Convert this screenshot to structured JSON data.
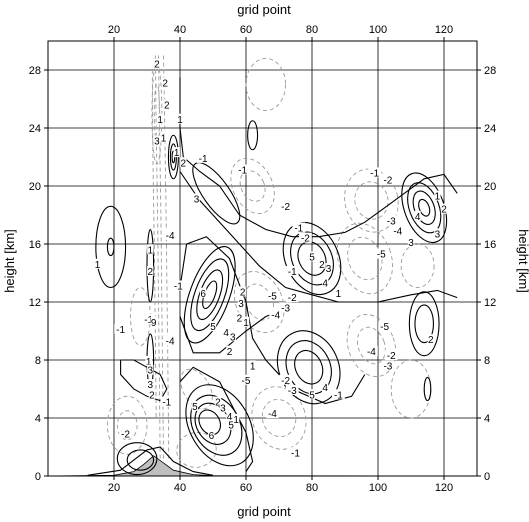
{
  "chart_data": {
    "type": "contour",
    "xlabel_bottom": "grid point",
    "xlabel_top": "grid point",
    "ylabel_left": "height [km]",
    "ylabel_right": "height [km]",
    "xlim": [
      0,
      130
    ],
    "ylim": [
      0,
      30
    ],
    "xticks": [
      20,
      40,
      60,
      80,
      100,
      120
    ],
    "yticks": [
      0,
      4,
      8,
      12,
      16,
      20,
      24,
      28
    ],
    "grid": true,
    "colors": {
      "positive": "#000000",
      "negative": "#9a9a9a",
      "terrain": "#bfbfbf"
    },
    "terrain": [
      [
        0,
        0
      ],
      [
        20,
        0.05
      ],
      [
        26,
        0.3
      ],
      [
        29,
        0.8
      ],
      [
        32,
        1.4
      ],
      [
        35,
        0.9
      ],
      [
        38,
        0.4
      ],
      [
        44,
        0.1
      ],
      [
        50,
        0.02
      ],
      [
        130,
        0
      ]
    ],
    "positive_contours": [
      {
        "cx": 49,
        "cy": 12.5,
        "rx": 6,
        "ry": 3.5,
        "rot": 20
      },
      {
        "cx": 49,
        "cy": 12.5,
        "rx": 4.5,
        "ry": 2.6,
        "rot": 20
      },
      {
        "cx": 49,
        "cy": 12.5,
        "rx": 3,
        "ry": 1.8,
        "rot": 20
      },
      {
        "cx": 49,
        "cy": 12.5,
        "rx": 1.6,
        "ry": 1,
        "rot": 20
      },
      {
        "cx": 52,
        "cy": 3.5,
        "rx": 9,
        "ry": 3,
        "rot": -30
      },
      {
        "cx": 51,
        "cy": 3.5,
        "rx": 7,
        "ry": 2.2,
        "rot": -30
      },
      {
        "cx": 50,
        "cy": 3.6,
        "rx": 5,
        "ry": 1.5,
        "rot": -30
      },
      {
        "cx": 49,
        "cy": 3.7,
        "rx": 3,
        "ry": 0.9,
        "rot": -30
      },
      {
        "cx": 80,
        "cy": 15,
        "rx": 8,
        "ry": 2.6,
        "rot": -25
      },
      {
        "cx": 80,
        "cy": 15,
        "rx": 6,
        "ry": 1.9,
        "rot": -25
      },
      {
        "cx": 80,
        "cy": 15,
        "rx": 4,
        "ry": 1.2,
        "rot": -25
      },
      {
        "cx": 79,
        "cy": 7.5,
        "rx": 9,
        "ry": 2.6,
        "rot": -25
      },
      {
        "cx": 79,
        "cy": 7.5,
        "rx": 6.5,
        "ry": 1.9,
        "rot": -25
      },
      {
        "cx": 79,
        "cy": 7.5,
        "rx": 4,
        "ry": 1.2,
        "rot": -25
      },
      {
        "cx": 114,
        "cy": 18.5,
        "rx": 6,
        "ry": 2.5,
        "rot": -20
      },
      {
        "cx": 114,
        "cy": 18.5,
        "rx": 4.5,
        "ry": 1.8,
        "rot": -20
      },
      {
        "cx": 114,
        "cy": 18.5,
        "rx": 3,
        "ry": 1.2,
        "rot": -20
      },
      {
        "cx": 114,
        "cy": 18.5,
        "rx": 1.5,
        "ry": 0.6,
        "rot": -20
      },
      {
        "cx": 114,
        "cy": 10.5,
        "rx": 4.5,
        "ry": 2.2,
        "rot": 0
      },
      {
        "cx": 114,
        "cy": 10.5,
        "rx": 2.8,
        "ry": 1.3,
        "rot": 0
      },
      {
        "cx": 19,
        "cy": 15.8,
        "rx": 4.5,
        "ry": 2.8,
        "rot": 0
      },
      {
        "cx": 19,
        "cy": 15.8,
        "rx": 1,
        "ry": 0.6,
        "rot": 0
      },
      {
        "cx": 51,
        "cy": 19.5,
        "rx": 4,
        "ry": 2.5,
        "rot": -35
      },
      {
        "cx": 38,
        "cy": 22,
        "rx": 1.5,
        "ry": 1.5,
        "rot": 0
      },
      {
        "cx": 38,
        "cy": 22,
        "rx": 0.9,
        "ry": 0.9,
        "rot": 0
      },
      {
        "cx": 38,
        "cy": 22,
        "rx": 0.4,
        "ry": 0.4,
        "rot": 0
      },
      {
        "cx": 62,
        "cy": 23.5,
        "rx": 1.5,
        "ry": 1,
        "rot": 0
      },
      {
        "cx": 115,
        "cy": 6,
        "rx": 1,
        "ry": 0.8,
        "rot": 0
      },
      {
        "cx": 31,
        "cy": 14.5,
        "rx": 1,
        "ry": 2.5,
        "rot": 0
      },
      {
        "cx": 31,
        "cy": 8,
        "rx": 1,
        "ry": 1.8,
        "rot": 0
      },
      {
        "cx": 27,
        "cy": 1.2,
        "rx": 6,
        "ry": 1.1,
        "rot": 0
      },
      {
        "cx": 28,
        "cy": 1.1,
        "rx": 4,
        "ry": 0.7,
        "rot": 0
      }
    ],
    "positive_polylines": [
      [
        [
          40,
          27.5
        ],
        [
          40,
          24
        ],
        [
          41,
          22
        ],
        [
          46,
          21
        ],
        [
          52,
          20
        ],
        [
          58,
          18
        ],
        [
          66,
          17
        ],
        [
          74,
          16.5
        ],
        [
          82,
          16.5
        ],
        [
          90,
          16.8
        ],
        [
          96,
          17.5
        ],
        [
          102,
          18.5
        ],
        [
          108,
          19.5
        ],
        [
          114,
          20.5
        ],
        [
          120,
          20.8
        ],
        [
          124,
          19.5
        ]
      ],
      [
        [
          40,
          21
        ],
        [
          46,
          19
        ],
        [
          56,
          16.5
        ],
        [
          64,
          14.5
        ],
        [
          72,
          13
        ],
        [
          80,
          12.5
        ],
        [
          88,
          12
        ],
        [
          100,
          12
        ],
        [
          110,
          12.5
        ],
        [
          118,
          12.8
        ],
        [
          124,
          12.3
        ]
      ],
      [
        [
          40,
          13
        ],
        [
          42,
          16
        ],
        [
          48,
          16.5
        ],
        [
          55,
          15
        ],
        [
          60,
          12
        ],
        [
          62,
          9.5
        ],
        [
          66,
          8
        ],
        [
          74,
          6
        ],
        [
          84,
          5
        ],
        [
          92,
          5.5
        ],
        [
          96,
          7
        ]
      ],
      [
        [
          40,
          11
        ],
        [
          44,
          8.5
        ],
        [
          52,
          8.5
        ],
        [
          60,
          10
        ],
        [
          66,
          11
        ],
        [
          72,
          11.5
        ]
      ],
      [
        [
          22,
          8
        ],
        [
          26,
          8
        ],
        [
          30,
          7.5
        ],
        [
          34,
          7
        ],
        [
          36,
          6
        ],
        [
          34,
          5.2
        ],
        [
          30,
          5.5
        ],
        [
          26,
          6
        ],
        [
          22,
          7
        ],
        [
          22,
          8
        ]
      ],
      [
        [
          40,
          6.5
        ],
        [
          44,
          7.5
        ],
        [
          52,
          6.5
        ],
        [
          60,
          3
        ],
        [
          62,
          1
        ],
        [
          60,
          0.3
        ]
      ],
      [
        [
          12,
          0.05
        ],
        [
          22,
          0.4
        ],
        [
          30,
          1.8
        ],
        [
          34,
          2
        ],
        [
          38,
          1
        ],
        [
          44,
          0.3
        ],
        [
          50,
          0.05
        ]
      ]
    ],
    "negative_contours": [
      {
        "cx": 33,
        "cy": 25,
        "rx": 1.5,
        "ry": 3.5,
        "rot": 0
      },
      {
        "cx": 33,
        "cy": 25,
        "rx": 0.8,
        "ry": 2,
        "rot": 0
      },
      {
        "cx": 62,
        "cy": 20,
        "rx": 6,
        "ry": 2,
        "rot": -25
      },
      {
        "cx": 62,
        "cy": 20,
        "rx": 3.5,
        "ry": 1.1,
        "rot": -25
      },
      {
        "cx": 98,
        "cy": 19,
        "rx": 8,
        "ry": 2.2,
        "rot": -15
      },
      {
        "cx": 98,
        "cy": 19,
        "rx": 5,
        "ry": 1.3,
        "rot": -15
      },
      {
        "cx": 64,
        "cy": 12,
        "rx": 7,
        "ry": 2.2,
        "rot": -25
      },
      {
        "cx": 64,
        "cy": 12,
        "rx": 4,
        "ry": 1.3,
        "rot": -25
      },
      {
        "cx": 96,
        "cy": 15,
        "rx": 8,
        "ry": 2.5,
        "rot": -20
      },
      {
        "cx": 96,
        "cy": 15,
        "rx": 5,
        "ry": 1.5,
        "rot": -20
      },
      {
        "cx": 98,
        "cy": 9,
        "rx": 7,
        "ry": 2.2,
        "rot": -20
      },
      {
        "cx": 98,
        "cy": 9,
        "rx": 4,
        "ry": 1.3,
        "rot": -20
      },
      {
        "cx": 70,
        "cy": 4,
        "rx": 8,
        "ry": 2.2,
        "rot": -20
      },
      {
        "cx": 70,
        "cy": 4,
        "rx": 5,
        "ry": 1.3,
        "rot": -20
      },
      {
        "cx": 45,
        "cy": 6,
        "rx": 4,
        "ry": 1.5,
        "rot": -30
      },
      {
        "cx": 45,
        "cy": 1.8,
        "rx": 6,
        "ry": 1.2,
        "rot": -10
      },
      {
        "cx": 24,
        "cy": 3.5,
        "rx": 6,
        "ry": 2,
        "rot": 0
      },
      {
        "cx": 24,
        "cy": 3.5,
        "rx": 3,
        "ry": 1,
        "rot": 0
      },
      {
        "cx": 28,
        "cy": 11,
        "rx": 3,
        "ry": 2,
        "rot": 0
      },
      {
        "cx": 110,
        "cy": 6,
        "rx": 6,
        "ry": 2,
        "rot": 0
      },
      {
        "cx": 112,
        "cy": 14.5,
        "rx": 5,
        "ry": 1.5,
        "rot": 0
      },
      {
        "cx": 66,
        "cy": 27,
        "rx": 6,
        "ry": 1.8,
        "rot": 0
      }
    ],
    "negative_polylines": [
      [
        [
          33.5,
          29
        ],
        [
          33.8,
          24
        ],
        [
          34.2,
          18
        ],
        [
          34.5,
          12
        ],
        [
          34.8,
          6
        ],
        [
          35,
          1
        ]
      ],
      [
        [
          32.5,
          29
        ],
        [
          32.8,
          24
        ],
        [
          33.2,
          18
        ],
        [
          33.5,
          12
        ],
        [
          33.8,
          6
        ],
        [
          34,
          1
        ]
      ],
      [
        [
          35,
          29
        ],
        [
          35.4,
          24
        ],
        [
          35.8,
          18
        ],
        [
          36.1,
          12
        ],
        [
          36.4,
          6
        ],
        [
          36.6,
          1
        ]
      ],
      [
        [
          31.6,
          28
        ],
        [
          31.8,
          22
        ],
        [
          32.2,
          16
        ],
        [
          32.5,
          10
        ],
        [
          32.8,
          4
        ]
      ]
    ],
    "labels": [
      {
        "x": 33,
        "y": 28.3,
        "text": "2"
      },
      {
        "x": 35.5,
        "y": 27,
        "text": "2"
      },
      {
        "x": 36,
        "y": 25.5,
        "text": "2"
      },
      {
        "x": 34,
        "y": 24.5,
        "text": "1"
      },
      {
        "x": 35,
        "y": 23.2,
        "text": "1"
      },
      {
        "x": 33,
        "y": 23,
        "text": "3"
      },
      {
        "x": 40,
        "y": 24.5,
        "text": "1"
      },
      {
        "x": 39,
        "y": 22.2,
        "text": "1"
      },
      {
        "x": 41,
        "y": 21.5,
        "text": "2"
      },
      {
        "x": 47,
        "y": 21.8,
        "text": "-1"
      },
      {
        "x": 45,
        "y": 19,
        "text": "3"
      },
      {
        "x": 59,
        "y": 21,
        "text": "-1"
      },
      {
        "x": 72,
        "y": 18.5,
        "text": "-2"
      },
      {
        "x": 99,
        "y": 20.8,
        "text": "-1"
      },
      {
        "x": 103,
        "y": 20.3,
        "text": "-2"
      },
      {
        "x": 104,
        "y": 17.5,
        "text": "-3"
      },
      {
        "x": 106,
        "y": 16.8,
        "text": "-4"
      },
      {
        "x": 112,
        "y": 17.8,
        "text": "4"
      },
      {
        "x": 118,
        "y": 19.2,
        "text": "1"
      },
      {
        "x": 120,
        "y": 18.3,
        "text": "2"
      },
      {
        "x": 118,
        "y": 16.6,
        "text": "3"
      },
      {
        "x": 110,
        "y": 16,
        "text": "3"
      },
      {
        "x": 76,
        "y": 17,
        "text": "-1"
      },
      {
        "x": 78,
        "y": 16.3,
        "text": "-2"
      },
      {
        "x": 80,
        "y": 15,
        "text": "5"
      },
      {
        "x": 83,
        "y": 14.5,
        "text": "2"
      },
      {
        "x": 85,
        "y": 14.2,
        "text": "3"
      },
      {
        "x": 84,
        "y": 13.2,
        "text": "4"
      },
      {
        "x": 88,
        "y": 12.5,
        "text": "1"
      },
      {
        "x": 101,
        "y": 15.2,
        "text": "-5"
      },
      {
        "x": 31,
        "y": 15.5,
        "text": "1"
      },
      {
        "x": 31,
        "y": 14,
        "text": "2"
      },
      {
        "x": 15,
        "y": 14.5,
        "text": "1"
      },
      {
        "x": 37,
        "y": 16.5,
        "text": "-4"
      },
      {
        "x": 39.5,
        "y": 13,
        "text": "-1"
      },
      {
        "x": 30.5,
        "y": 10.7,
        "text": "-1"
      },
      {
        "x": 32,
        "y": 10.5,
        "text": "9"
      },
      {
        "x": 22,
        "y": 10,
        "text": "-1"
      },
      {
        "x": 37,
        "y": 9.2,
        "text": "-4"
      },
      {
        "x": 47,
        "y": 12.5,
        "text": "6"
      },
      {
        "x": 50,
        "y": 10.2,
        "text": "5"
      },
      {
        "x": 54,
        "y": 9.8,
        "text": "4"
      },
      {
        "x": 56,
        "y": 9.5,
        "text": "3"
      },
      {
        "x": 58,
        "y": 10.8,
        "text": "2"
      },
      {
        "x": 60,
        "y": 10.5,
        "text": "1"
      },
      {
        "x": 58.5,
        "y": 11.8,
        "text": "3"
      },
      {
        "x": 59,
        "y": 12.6,
        "text": "2"
      },
      {
        "x": 68,
        "y": 12.3,
        "text": "-5"
      },
      {
        "x": 69,
        "y": 11,
        "text": "-4"
      },
      {
        "x": 72,
        "y": 11.5,
        "text": "-3"
      },
      {
        "x": 74,
        "y": 12.2,
        "text": "-2"
      },
      {
        "x": 74,
        "y": 14,
        "text": "-1"
      },
      {
        "x": 55,
        "y": 8.5,
        "text": "2"
      },
      {
        "x": 62,
        "y": 7.5,
        "text": "1"
      },
      {
        "x": 80,
        "y": 5.5,
        "text": "5"
      },
      {
        "x": 84,
        "y": 6,
        "text": "4"
      },
      {
        "x": 88,
        "y": 5.5,
        "text": "-1"
      },
      {
        "x": 102,
        "y": 10.2,
        "text": "-5"
      },
      {
        "x": 103,
        "y": 7.5,
        "text": "-3"
      },
      {
        "x": 104,
        "y": 8.2,
        "text": "-2"
      },
      {
        "x": 98,
        "y": 8.5,
        "text": "-4"
      },
      {
        "x": 116,
        "y": 9.3,
        "text": "2"
      },
      {
        "x": 72,
        "y": 6.5,
        "text": "-2"
      },
      {
        "x": 74,
        "y": 5.8,
        "text": "-3"
      },
      {
        "x": 68,
        "y": 4.2,
        "text": "-4"
      },
      {
        "x": 60,
        "y": 6.5,
        "text": "-5"
      },
      {
        "x": 51.5,
        "y": 5,
        "text": "2"
      },
      {
        "x": 53,
        "y": 4.6,
        "text": "3"
      },
      {
        "x": 55,
        "y": 4,
        "text": "4"
      },
      {
        "x": 55.5,
        "y": 3.4,
        "text": "5"
      },
      {
        "x": 57,
        "y": 3.8,
        "text": "1"
      },
      {
        "x": 49.5,
        "y": 2.7,
        "text": "6"
      },
      {
        "x": 44.5,
        "y": 4.7,
        "text": "5"
      },
      {
        "x": 36,
        "y": 5,
        "text": "-1"
      },
      {
        "x": 23.5,
        "y": 2.8,
        "text": "-2"
      },
      {
        "x": 30.5,
        "y": 7.8,
        "text": "1"
      },
      {
        "x": 31,
        "y": 7.2,
        "text": "3"
      },
      {
        "x": 31,
        "y": 6.2,
        "text": "3"
      },
      {
        "x": 31.5,
        "y": 5.5,
        "text": "2"
      },
      {
        "x": 75,
        "y": 1.5,
        "text": "-1"
      }
    ]
  }
}
